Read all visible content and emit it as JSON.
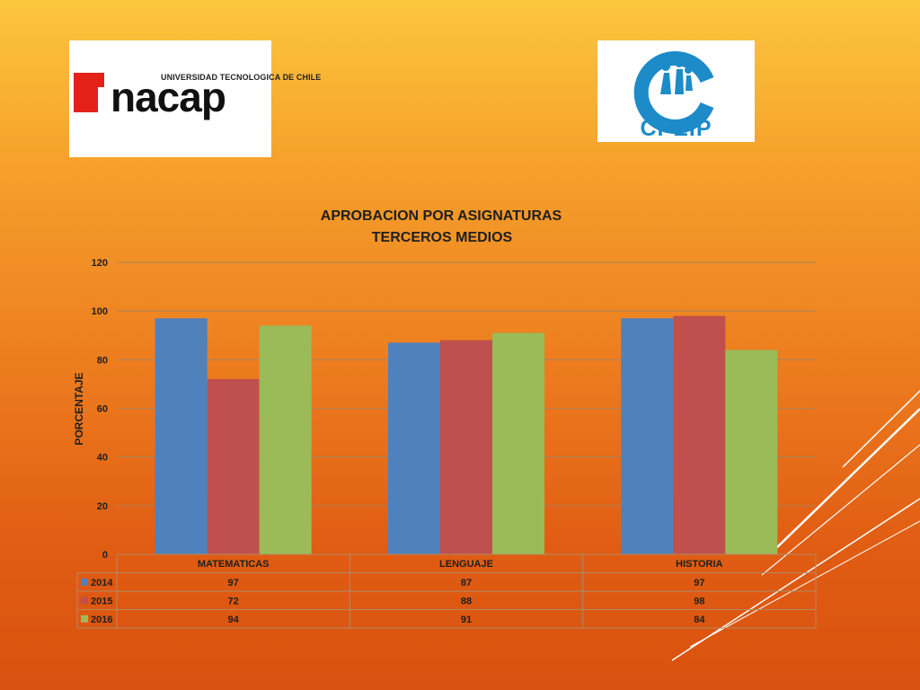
{
  "logos": {
    "inacap": {
      "tagline": "UNIVERSIDAD TECNOLOGICA DE CHILE",
      "name": "nacap"
    },
    "cpeip": {
      "name": "CPEIP"
    }
  },
  "chart_data": {
    "type": "bar",
    "title": "APROBACION POR ASIGNATURAS",
    "subtitle": "TERCEROS MEDIOS",
    "ylabel": "PORCENTAJE",
    "xlabel": "",
    "ylim": [
      0,
      120
    ],
    "yticks": [
      0,
      20,
      40,
      60,
      80,
      100,
      120
    ],
    "grid": true,
    "legend": "data-table",
    "categories": [
      "MATEMATICAS",
      "LENGUAJE",
      "HISTORIA"
    ],
    "series": [
      {
        "name": "2014",
        "color": "#4f81bd",
        "values": [
          97,
          87,
          97
        ]
      },
      {
        "name": "2015",
        "color": "#c0504d",
        "values": [
          72,
          88,
          98
        ]
      },
      {
        "name": "2016",
        "color": "#9bbb59",
        "values": [
          94,
          91,
          84
        ]
      }
    ]
  }
}
